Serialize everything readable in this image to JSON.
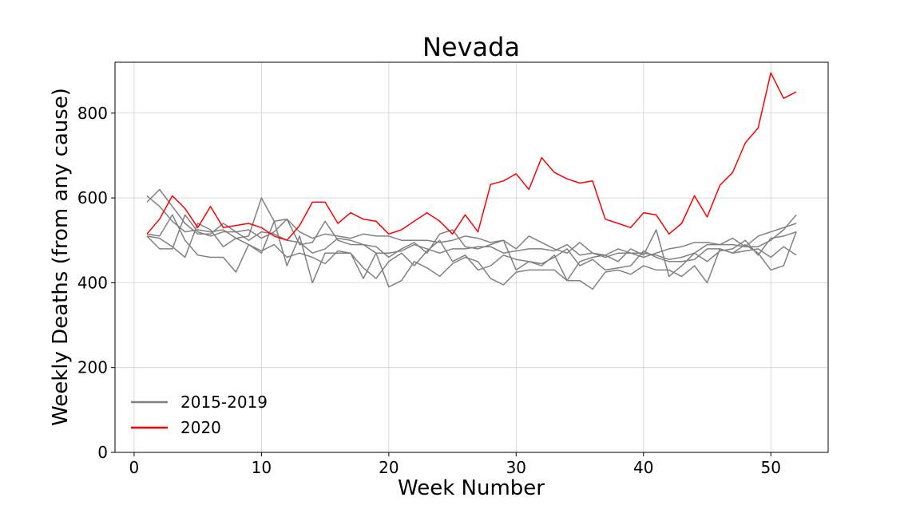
{
  "chart_data": {
    "type": "line",
    "title": "Nevada",
    "xlabel": "Week Number",
    "ylabel": "Weekly Deaths (from any cause)",
    "xlim": [
      -1.5,
      54.5
    ],
    "ylim": [
      0,
      920
    ],
    "xticks": [
      0,
      10,
      20,
      30,
      40,
      50
    ],
    "yticks": [
      0,
      200,
      400,
      600,
      800
    ],
    "grid": true,
    "legend_position": "lower-left",
    "legend": [
      {
        "label": "2015-2019",
        "color": "#808080"
      },
      {
        "label": "2020",
        "color": "#ff0000"
      }
    ],
    "series": [
      {
        "group": "2015-2019",
        "color": "#808080",
        "values": [
          605,
          580,
          545,
          520,
          525,
          520,
          525,
          505,
          510,
          600,
          545,
          550,
          490,
          495,
          545,
          500,
          490,
          490,
          485,
          460,
          480,
          495,
          470,
          515,
          525,
          485,
          480,
          490,
          500,
          430,
          450,
          440,
          465,
          405,
          450,
          460,
          465,
          450,
          480,
          465,
          525,
          415,
          440,
          470,
          450,
          475,
          480,
          500,
          465,
          505,
          510,
          520
        ]
      },
      {
        "group": "2015-2019",
        "color": "#808080",
        "values": [
          590,
          620,
          580,
          540,
          515,
          515,
          540,
          520,
          525,
          505,
          520,
          550,
          520,
          505,
          515,
          510,
          505,
          515,
          510,
          510,
          500,
          500,
          500,
          495,
          500,
          510,
          505,
          495,
          500,
          480,
          510,
          495,
          480,
          470,
          495,
          470,
          465,
          480,
          470,
          470,
          465,
          455,
          460,
          470,
          490,
          490,
          505,
          485,
          510,
          520,
          530,
          540
        ]
      },
      {
        "group": "2015-2019",
        "color": "#808080",
        "values": [
          510,
          480,
          480,
          560,
          520,
          510,
          520,
          520,
          500,
          520,
          515,
          500,
          495,
          470,
          480,
          505,
          500,
          490,
          470,
          470,
          475,
          490,
          480,
          470,
          480,
          480,
          485,
          485,
          470,
          475,
          480,
          480,
          475,
          490,
          465,
          470,
          460,
          470,
          470,
          460,
          470,
          480,
          485,
          495,
          495,
          490,
          490,
          485,
          485,
          500,
          525,
          560
        ]
      },
      {
        "group": "2015-2019",
        "color": "#808080",
        "values": [
          510,
          505,
          485,
          460,
          540,
          525,
          485,
          505,
          490,
          470,
          545,
          440,
          510,
          400,
          470,
          470,
          470,
          435,
          410,
          450,
          470,
          440,
          475,
          500,
          450,
          465,
          430,
          440,
          465,
          455,
          450,
          445,
          460,
          480,
          440,
          455,
          430,
          435,
          440,
          475,
          460,
          450,
          450,
          455,
          480,
          480,
          470,
          475,
          480,
          460,
          485,
          465
        ]
      },
      {
        "group": "2015-2019",
        "color": "#808080",
        "values": [
          515,
          510,
          560,
          500,
          465,
          460,
          460,
          425,
          490,
          475,
          490,
          460,
          470,
          460,
          445,
          475,
          470,
          410,
          470,
          390,
          405,
          450,
          435,
          415,
          445,
          460,
          450,
          410,
          395,
          425,
          430,
          430,
          430,
          405,
          405,
          385,
          425,
          430,
          420,
          440,
          430,
          430,
          415,
          440,
          400,
          480,
          470,
          490,
          470,
          430,
          440,
          520
        ]
      },
      {
        "group": "2020",
        "color": "#ff0000",
        "values": [
          515,
          550,
          605,
          575,
          530,
          580,
          530,
          535,
          540,
          530,
          510,
          500,
          535,
          590,
          590,
          540,
          565,
          550,
          545,
          515,
          525,
          545,
          565,
          545,
          515,
          560,
          520,
          632,
          640,
          657,
          620,
          695,
          660,
          645,
          635,
          640,
          550,
          540,
          530,
          565,
          560,
          515,
          540,
          605,
          555,
          630,
          660,
          730,
          765,
          895,
          835,
          850
        ]
      }
    ]
  }
}
